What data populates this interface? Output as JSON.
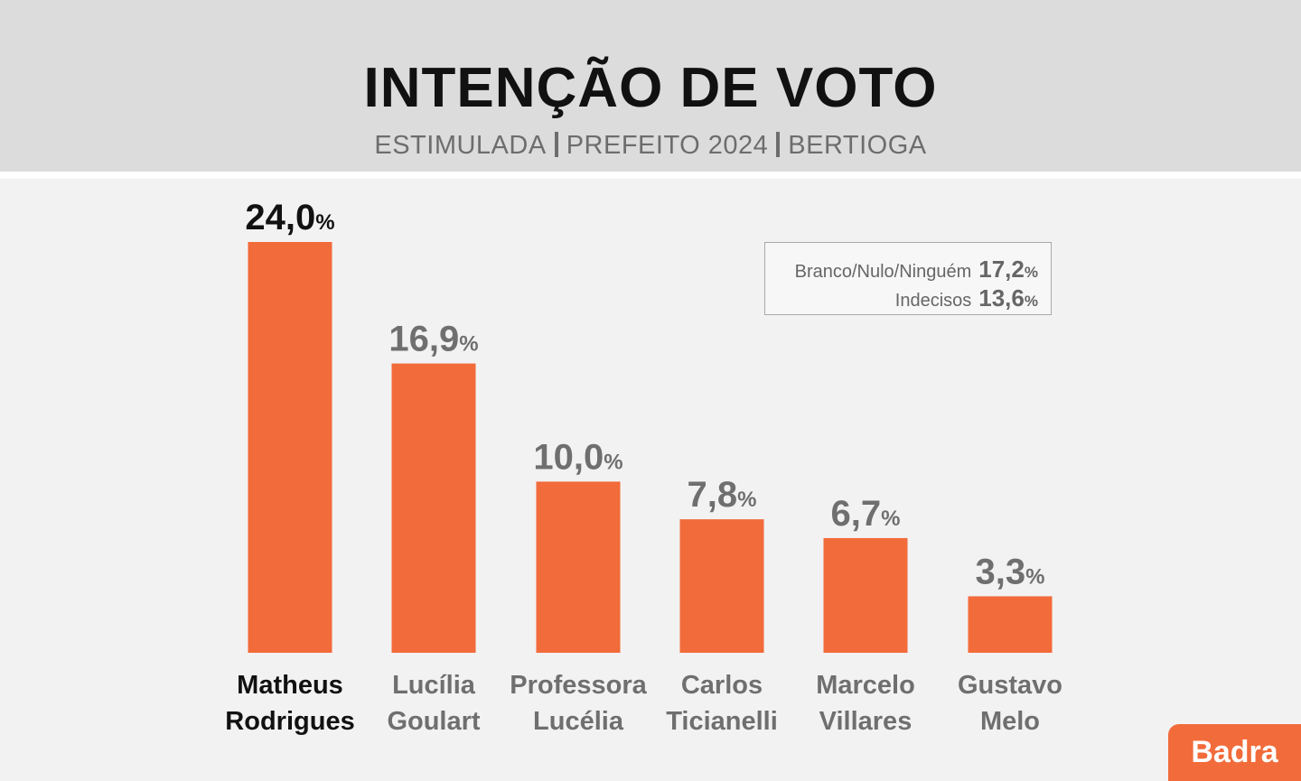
{
  "header": {
    "title": "INTENÇÃO DE VOTO",
    "subtitle_parts": [
      "ESTIMULADA",
      "PREFEITO 2024",
      "BERTIOGA"
    ]
  },
  "legend": {
    "items": [
      {
        "label": "Branco/Nulo/Ninguém",
        "value": "17,2",
        "unit": "%"
      },
      {
        "label": "Indecisos",
        "value": "13,6",
        "unit": "%"
      }
    ]
  },
  "brand": {
    "logo_text": "Badra"
  },
  "colors": {
    "bar": "#f26b3a",
    "leader_text": "#111111",
    "text_muted": "#6f6f6f"
  },
  "chart_data": {
    "type": "bar",
    "title": "INTENÇÃO DE VOTO",
    "subtitle": "ESTIMULADA | PREFEITO 2024 | BERTIOGA",
    "categories": [
      [
        "Matheus",
        "Rodrigues"
      ],
      [
        "Lucília",
        "Goulart"
      ],
      [
        "Professora",
        "Lucélia"
      ],
      [
        "Carlos",
        "Ticianelli"
      ],
      [
        "Marcelo",
        "Villares"
      ],
      [
        "Gustavo",
        "Melo"
      ]
    ],
    "values": [
      24.0,
      16.9,
      10.0,
      7.8,
      6.7,
      3.3
    ],
    "value_labels": [
      "24,0",
      "16,9",
      "10,0",
      "7,8",
      "6,7",
      "3,3"
    ],
    "unit": "%",
    "ylim": [
      0,
      24.0
    ],
    "grid": false
  }
}
